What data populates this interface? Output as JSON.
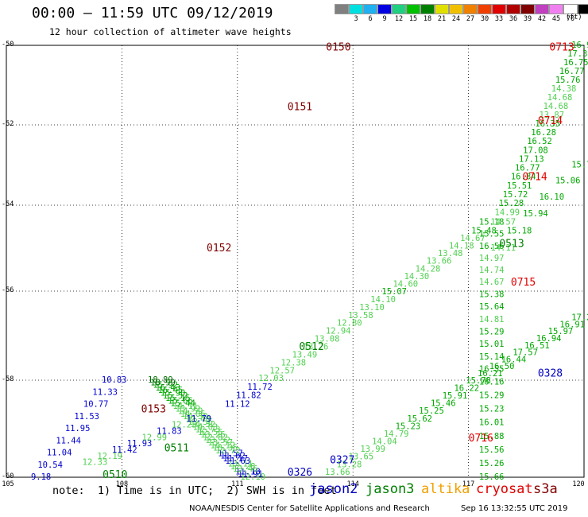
{
  "header": {
    "title": "00:00 – 11:59 UTC 09/12/2019",
    "subtitle": "12 hour collection of altimeter wave heights"
  },
  "colorbar": {
    "unit": "(ft)",
    "swatches": [
      {
        "label": "",
        "color": "#808080"
      },
      {
        "label": "3",
        "color": "#00e0e0"
      },
      {
        "label": "6",
        "color": "#20b0f0"
      },
      {
        "label": "9",
        "color": "#0000e0"
      },
      {
        "label": "12",
        "color": "#20d080"
      },
      {
        "label": "15",
        "color": "#00c000"
      },
      {
        "label": "18",
        "color": "#008000"
      },
      {
        "label": "21",
        "color": "#e0e000"
      },
      {
        "label": "24",
        "color": "#f0c000"
      },
      {
        "label": "27",
        "color": "#f08000"
      },
      {
        "label": "30",
        "color": "#f04000"
      },
      {
        "label": "33",
        "color": "#e00000"
      },
      {
        "label": "36",
        "color": "#b00000"
      },
      {
        "label": "39",
        "color": "#800000"
      },
      {
        "label": "42",
        "color": "#c040c0"
      },
      {
        "label": "45",
        "color": "#f080f0"
      },
      {
        "label": "70",
        "color": "#ffffff"
      },
      {
        "label": "",
        "color": "#000000"
      }
    ]
  },
  "axes": {
    "lat_ticks": [
      "-50",
      "-52",
      "-54",
      "-56",
      "-58",
      "-60"
    ],
    "lon_ticks": [
      "105",
      "108",
      "111",
      "114",
      "117",
      "120"
    ]
  },
  "legend": {
    "note": "note:  1) Time is in UTC;  2) SWH is in feet",
    "satellites": [
      {
        "name": "jason2",
        "color": "#0000c0"
      },
      {
        "name": "jason3",
        "color": "#008000"
      },
      {
        "name": "altika",
        "color": "#f0a000"
      },
      {
        "name": "cryosat",
        "color": "#e00000"
      },
      {
        "name": "s3a",
        "color": "#800000"
      }
    ]
  },
  "footer": {
    "credit": "NOAA/NESDIS Center for Satellite Applications and Research",
    "timestamp": "Sep 16 13:32:55 UTC 2019"
  },
  "tracks": [
    {
      "id": "s3a-west",
      "satellite": "s3a",
      "lon0": 111.4,
      "lat0": -60,
      "lon1": 109.0,
      "lat1": -58,
      "values": [
        "12.10",
        "11.91",
        "11.18",
        "13.46",
        "12.28",
        "13.11",
        "11.63",
        "11.17",
        "11.82",
        "11.57",
        "12.72",
        "13.35",
        "14.12",
        "13.57",
        "13.52",
        "12.82",
        "13.26",
        "12.55",
        "12.73",
        "14.03",
        "14.32",
        "13.56",
        "12.48",
        "14.30",
        "14.06",
        "14.59",
        "13.92",
        "14.11",
        "15.44",
        "15.66",
        "15.15",
        "15.52",
        "15.90",
        "16.45",
        "16.43",
        "15.92",
        "18.99",
        "18.89"
      ]
    },
    {
      "id": "s3a-west-low",
      "satellite": "jason2",
      "lon0": 105.9,
      "lat0": -60,
      "lon1": 107.8,
      "lat1": -58,
      "values": [
        "9.18",
        "10.54",
        "11.04",
        "11.44",
        "11.95",
        "11.53",
        "10.77",
        "11.33",
        "10.83"
      ]
    },
    {
      "id": "jason3-0511",
      "satellite": "jason3",
      "lon0": 107.3,
      "lat0": -59.7,
      "lon1": 110.0,
      "lat1": -58.8,
      "values": [
        "12.33",
        "12.19",
        "11.42",
        "11.93",
        "12.99",
        "11.83",
        "12.23",
        "11.79"
      ]
    },
    {
      "id": "jason3-0512",
      "satellite": "jason3",
      "lon0": 111.0,
      "lat0": -58.5,
      "lon1": 117.4,
      "lat1": -54.6,
      "values": [
        "11.12",
        "11.82",
        "11.72",
        "12.03",
        "12.57",
        "12.38",
        "13.49",
        "13.26",
        "13.08",
        "12.94",
        "12.80",
        "13.58",
        "13.10",
        "14.10",
        "15.07",
        "14.60",
        "14.30",
        "14.28",
        "13.66",
        "13.48",
        "14.18",
        "14.67",
        "15.48"
      ]
    },
    {
      "id": "jason3-0513",
      "satellite": "jason3",
      "lon0": 117.6,
      "lat0": -54.4,
      "lon1": 117.6,
      "lat1": -60,
      "values": [
        "15.18",
        "15.55",
        "16.56",
        "14.97",
        "14.74",
        "14.67",
        "15.38",
        "15.64",
        "14.81",
        "15.29",
        "15.01",
        "15.14",
        "16.55",
        "16.16",
        "15.29",
        "15.23",
        "16.01",
        "15.88",
        "15.56",
        "15.26",
        "15.66"
      ]
    },
    {
      "id": "cryosat-0713",
      "satellite": "jason3",
      "lon0": 120.0,
      "lat0": -50,
      "lon1": 117.9,
      "lat1": -54.4,
      "values": [
        "16.95",
        "17.37",
        "16.75",
        "16.77",
        "15.76",
        "14.38",
        "14.68",
        "14.68",
        "13.87",
        "16.35",
        "16.28",
        "16.52",
        "17.08",
        "17.13",
        "16.77",
        "16.84",
        "15.51",
        "15.72",
        "15.28",
        "14.99",
        "14.57"
      ]
    },
    {
      "id": "jason3-0326",
      "satellite": "jason3",
      "lon0": 113.6,
      "lat0": -59.9,
      "lon1": 120.0,
      "lat1": -56.6,
      "values": [
        "13.66",
        "13.28",
        "13.65",
        "13.99",
        "14.04",
        "14.79",
        "15.23",
        "15.62",
        "15.25",
        "15.46",
        "15.91",
        "16.22",
        "15.78",
        "16.21",
        "16.50",
        "16.44",
        "17.57",
        "16.51",
        "16.94",
        "15.97",
        "16.91",
        "17.21"
      ]
    },
    {
      "id": "jason3-0714",
      "satellite": "jason3",
      "lon0": 117.9,
      "lat0": -55.0,
      "lon1": 120.0,
      "lat1": -53.0,
      "values": [
        "14.11",
        "15.18",
        "15.94",
        "16.10",
        "15.06",
        "15.71"
      ]
    }
  ],
  "labels": [
    {
      "text": "0150",
      "satellite": "s3a",
      "lon": 113.3,
      "lat": -50.05
    },
    {
      "text": "0151",
      "satellite": "s3a",
      "lon": 112.3,
      "lat": -51.55
    },
    {
      "text": "0152",
      "satellite": "s3a",
      "lon": 110.2,
      "lat": -55.0
    },
    {
      "text": "0153",
      "satellite": "s3a",
      "lon": 108.5,
      "lat": -58.6
    },
    {
      "text": "0510",
      "satellite": "jason3",
      "lon": 107.5,
      "lat": -59.95
    },
    {
      "text": "0511",
      "satellite": "jason3",
      "lon": 109.1,
      "lat": -59.4
    },
    {
      "text": "0512",
      "satellite": "jason3",
      "lon": 112.6,
      "lat": -57.25
    },
    {
      "text": "0513",
      "satellite": "jason3",
      "lon": 117.8,
      "lat": -54.9
    },
    {
      "text": "0326",
      "satellite": "jason2",
      "lon": 112.3,
      "lat": -59.9
    },
    {
      "text": "0327",
      "satellite": "jason2",
      "lon": 113.4,
      "lat": -59.65
    },
    {
      "text": "0328",
      "satellite": "jason2",
      "lon": 118.8,
      "lat": -57.85
    },
    {
      "text": "0713",
      "satellite": "cryosat",
      "lon": 119.1,
      "lat": -50.05
    },
    {
      "text": "0714",
      "satellite": "cryosat",
      "lon": 118.8,
      "lat": -51.9
    },
    {
      "text": "0714",
      "satellite": "cryosat",
      "lon": 118.4,
      "lat": -53.3
    },
    {
      "text": "0715",
      "satellite": "cryosat",
      "lon": 118.1,
      "lat": -55.8
    },
    {
      "text": "0716",
      "satellite": "cryosat",
      "lon": 117.0,
      "lat": -59.2
    }
  ]
}
